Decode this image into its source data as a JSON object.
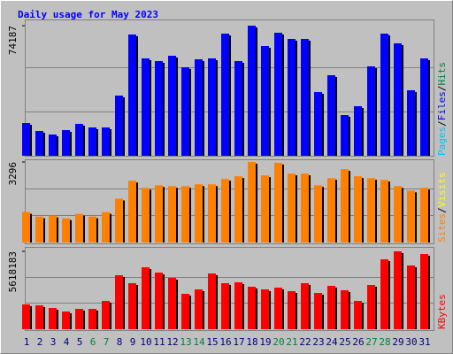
{
  "title": "Daily usage for May 2023",
  "days": [
    "1",
    "2",
    "3",
    "4",
    "5",
    "6",
    "7",
    "8",
    "9",
    "10",
    "11",
    "12",
    "13",
    "14",
    "15",
    "16",
    "17",
    "18",
    "19",
    "20",
    "21",
    "22",
    "23",
    "24",
    "25",
    "26",
    "27",
    "28",
    "29",
    "30",
    "31"
  ],
  "day_colors": [
    "#000080",
    "#000080",
    "#000080",
    "#000080",
    "#000080",
    "#008040",
    "#008040",
    "#000080",
    "#000080",
    "#000080",
    "#000080",
    "#000080",
    "#008040",
    "#008040",
    "#000080",
    "#000080",
    "#000080",
    "#000080",
    "#000080",
    "#008040",
    "#008040",
    "#000080",
    "#000080",
    "#000080",
    "#000080",
    "#000080",
    "#008040",
    "#008040",
    "#000080",
    "#000080",
    "#000080"
  ],
  "chart_data": [
    {
      "type": "bar",
      "ylim": [
        0,
        74187
      ],
      "yticks": [
        74187
      ],
      "legend": [
        {
          "text": "Pages",
          "color": "#00C0FF"
        },
        {
          "text": "/",
          "color": "#000000"
        },
        {
          "text": "Files",
          "color": "#0000FF"
        },
        {
          "text": "/",
          "color": "#000000"
        },
        {
          "text": "Hits",
          "color": "#008040"
        }
      ],
      "series": [
        {
          "color": "#0000FF",
          "values": [
            18670,
            14130,
            12110,
            14640,
            18170,
            16150,
            16150,
            34320,
            69140,
            55520,
            54000,
            57030,
            50470,
            55010,
            55520,
            69650,
            54000,
            74187,
            62580,
            70150,
            66620,
            66620,
            36340,
            45930,
            23220,
            28260,
            50970,
            69650,
            64100,
            37350,
            55520
          ]
        }
      ]
    },
    {
      "type": "bar",
      "ylim": [
        0,
        3296
      ],
      "yticks": [
        3296
      ],
      "legend": [
        {
          "text": "Sites",
          "color": "#FF8000"
        },
        {
          "text": "/",
          "color": "#000000"
        },
        {
          "text": "Visits",
          "color": "#FFFF00"
        }
      ],
      "series": [
        {
          "color": "#FF8000",
          "values": [
            1245,
            1061,
            1098,
            988,
            1172,
            1061,
            1245,
            1794,
            2527,
            2234,
            2344,
            2307,
            2307,
            2380,
            2380,
            2600,
            2710,
            3296,
            2746,
            3260,
            2820,
            2820,
            2344,
            2637,
            3003,
            2710,
            2637,
            2564,
            2307,
            2124,
            2234
          ]
        }
      ]
    },
    {
      "type": "bar",
      "ylim": [
        0,
        5618183
      ],
      "yticks": [
        5618183
      ],
      "legend": [
        {
          "text": "KBytes",
          "color": "#FF0000"
        }
      ],
      "series": [
        {
          "color": "#FF0000",
          "values": [
            1787600,
            1723800,
            1532200,
            1276900,
            1468400,
            1468400,
            2043000,
            3894400,
            3319800,
            4469000,
            4086000,
            3702900,
            2553700,
            2872900,
            4022100,
            3319800,
            3383700,
            3064500,
            2872900,
            3000600,
            2745200,
            3319800,
            2617600,
            3128300,
            2809100,
            2043000,
            3192200,
            5043600,
            5618183,
            4596700,
            5426700
          ]
        }
      ]
    }
  ]
}
